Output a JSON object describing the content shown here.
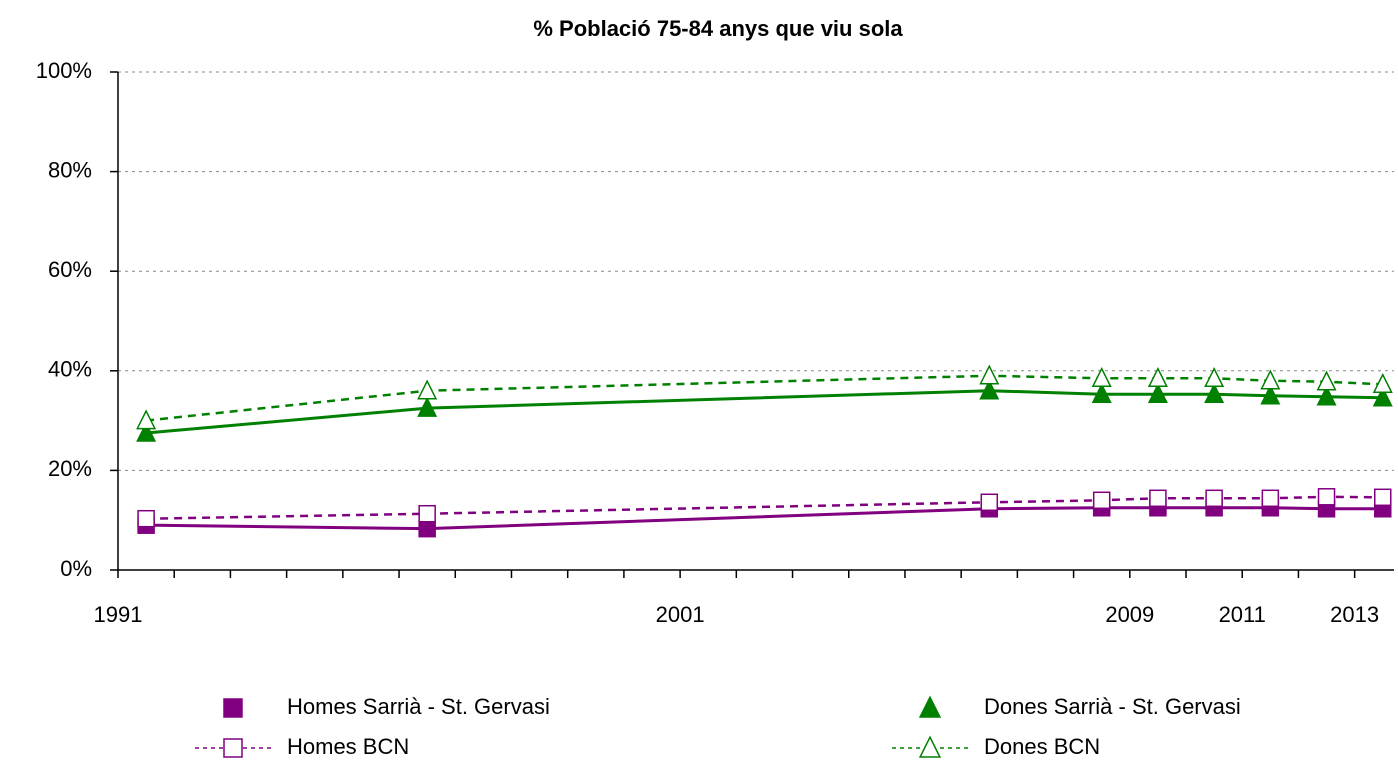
{
  "chart_data": {
    "type": "line",
    "title": "% Població 75-84 anys que viu sola",
    "x": [
      1991.5,
      1996.5,
      2006.5,
      2008.5,
      2009.5,
      2010.5,
      2011.5,
      2012.5,
      2013.5
    ],
    "xlim": [
      1991,
      2013.7
    ],
    "xticks": [
      1991,
      2001,
      2009,
      2011,
      2013
    ],
    "xminorticks": [
      1992,
      1993,
      1994,
      1995,
      1996,
      1997,
      1998,
      1999,
      2000,
      2002,
      2003,
      2004,
      2005,
      2006,
      2007,
      2008,
      2010,
      2012
    ],
    "ylim": [
      0,
      100
    ],
    "yticks": [
      {
        "value": 0,
        "label": "0%"
      },
      {
        "value": 20,
        "label": "20%"
      },
      {
        "value": 40,
        "label": "40%"
      },
      {
        "value": 60,
        "label": "60%"
      },
      {
        "value": 80,
        "label": "80%"
      },
      {
        "value": 100,
        "label": "100%"
      }
    ],
    "grid": true,
    "series": [
      {
        "name": "Homes Sarrià - St. Gervasi",
        "color": "#800080",
        "marker": "square",
        "filled": true,
        "dashed": false,
        "values": [
          9,
          8.3,
          12.3,
          12.5,
          12.5,
          12.5,
          12.5,
          12.3,
          12.3
        ]
      },
      {
        "name": "Dones Sarrià - St. Gervasi",
        "color": "#008000",
        "marker": "triangle",
        "filled": true,
        "dashed": false,
        "values": [
          27.5,
          32.5,
          36,
          35.3,
          35.3,
          35.3,
          35,
          34.8,
          34.6
        ]
      },
      {
        "name": "Homes BCN",
        "color": "#800080",
        "marker": "square",
        "filled": false,
        "dashed": true,
        "values": [
          10.3,
          11.3,
          13.6,
          14,
          14.4,
          14.4,
          14.4,
          14.7,
          14.6
        ]
      },
      {
        "name": "Dones BCN",
        "color": "#008000",
        "marker": "triangle",
        "filled": false,
        "dashed": true,
        "values": [
          30,
          36,
          39,
          38.5,
          38.5,
          38.5,
          38,
          37.8,
          37.3
        ]
      }
    ]
  }
}
